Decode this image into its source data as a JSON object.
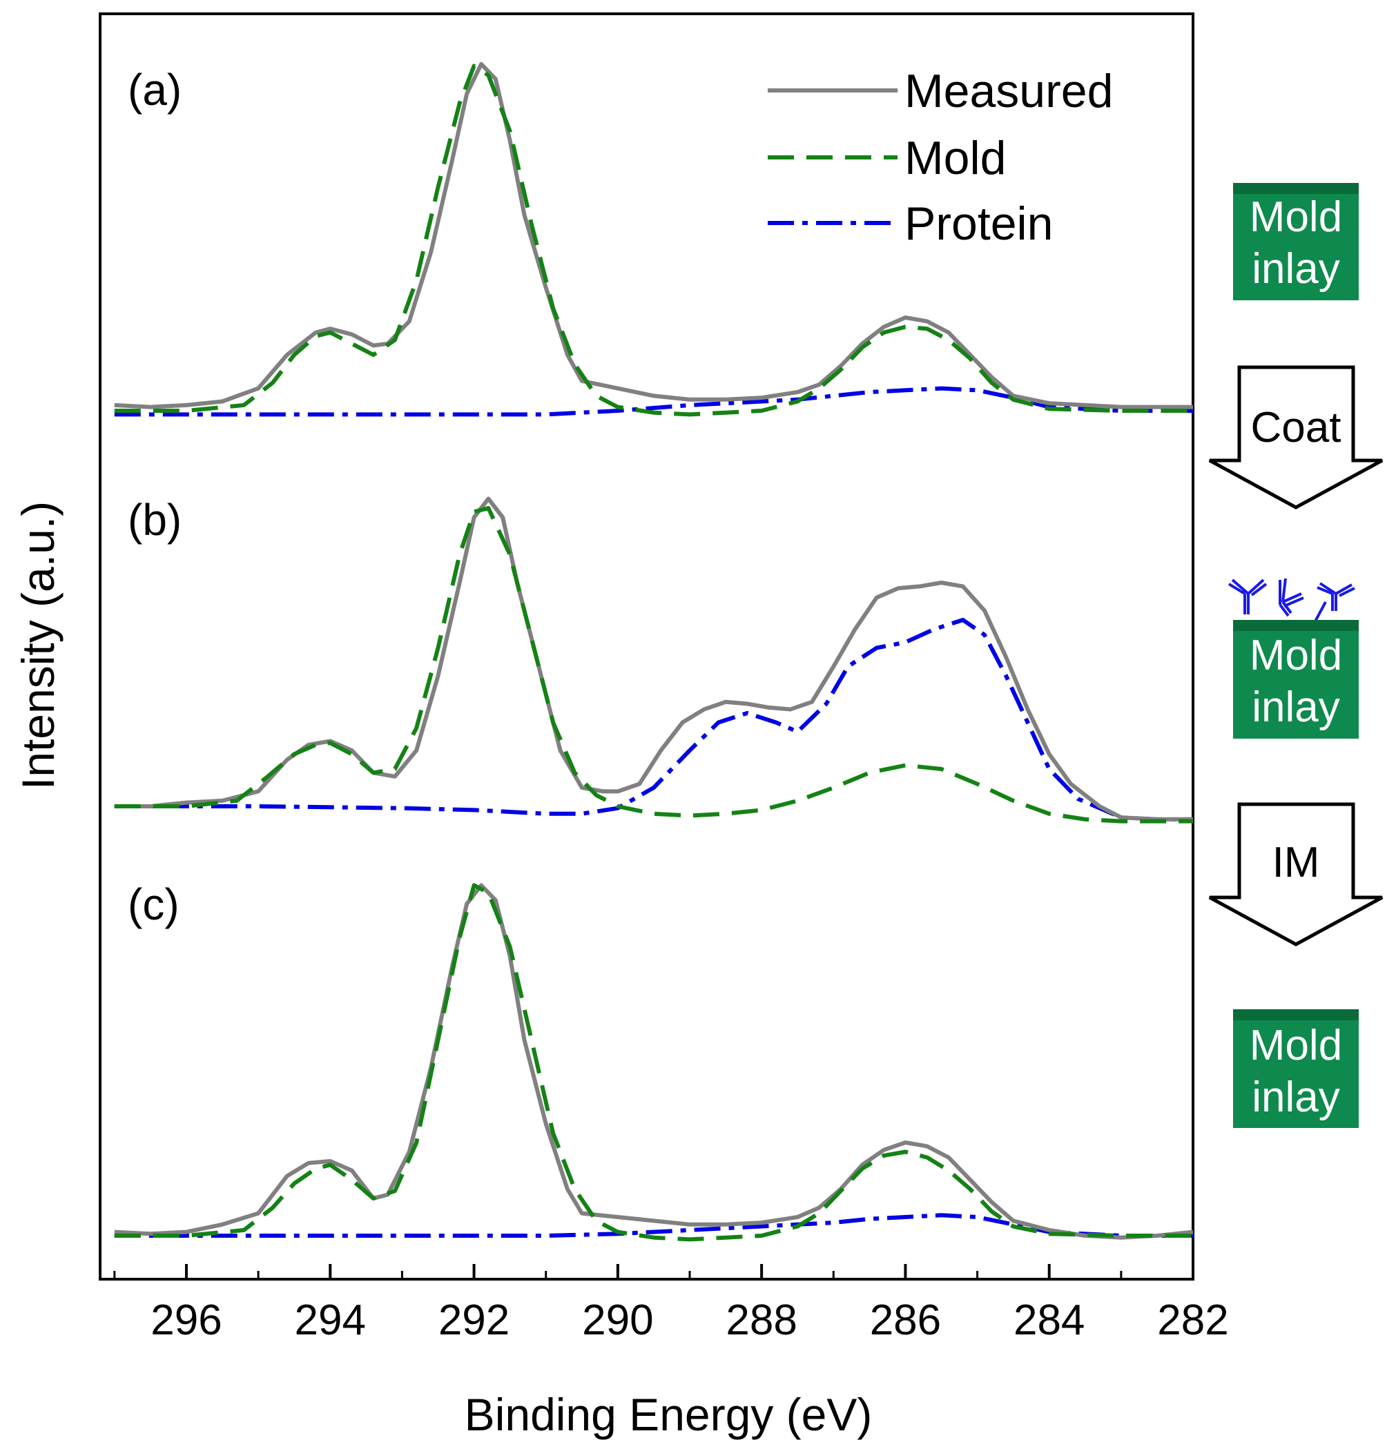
{
  "chart_data": {
    "type": "line",
    "title": "",
    "xlabel": "Binding Energy (eV)",
    "ylabel": "Intensity (a.u.)",
    "xlim": [
      297.2,
      282
    ],
    "x_reversed": true,
    "x_ticks": [
      296,
      294,
      292,
      290,
      288,
      286,
      284,
      282
    ],
    "y_ticks_shown": false,
    "grid": false,
    "legend": {
      "position": "top-right",
      "entries": [
        {
          "name": "Measured",
          "style": "solid",
          "color": "#808080"
        },
        {
          "name": "Mold",
          "style": "dashed",
          "color": "#148214"
        },
        {
          "name": "Protein",
          "style": "dash-dot",
          "color": "#0000e6"
        }
      ]
    },
    "panels": [
      {
        "label": "(a)",
        "description": "Mold inlay",
        "series": [
          {
            "name": "Measured",
            "x": [
              297,
              296.5,
              296,
              295.5,
              295,
              294.6,
              294.2,
              294,
              293.7,
              293.4,
              293.2,
              292.9,
              292.6,
              292.3,
              292.1,
              291.9,
              291.7,
              291.5,
              291.3,
              291,
              290.7,
              290.5,
              290,
              289.5,
              289,
              288.5,
              288,
              287.5,
              287.2,
              286.9,
              286.6,
              286.3,
              286,
              285.7,
              285.4,
              285.1,
              284.8,
              284.5,
              284,
              283.5,
              283,
              282.5,
              282
            ],
            "y": [
              0.03,
              0.02,
              0.03,
              0.05,
              0.12,
              0.3,
              0.42,
              0.44,
              0.41,
              0.35,
              0.36,
              0.48,
              0.85,
              1.35,
              1.7,
              1.86,
              1.78,
              1.45,
              1.05,
              0.66,
              0.3,
              0.16,
              0.12,
              0.08,
              0.06,
              0.06,
              0.07,
              0.1,
              0.14,
              0.24,
              0.36,
              0.45,
              0.5,
              0.48,
              0.42,
              0.3,
              0.18,
              0.08,
              0.04,
              0.03,
              0.02,
              0.02,
              0.02
            ]
          },
          {
            "name": "Mold",
            "x": [
              297,
              296,
              295.2,
              294.8,
              294.5,
              294.2,
              294,
              293.7,
              293.4,
              293.1,
              292.8,
              292.5,
              292.2,
              292,
              291.8,
              291.5,
              291.2,
              290.9,
              290.6,
              290.3,
              290,
              289.5,
              289,
              288.5,
              288,
              287.5,
              287.2,
              286.9,
              286.6,
              286.3,
              286,
              285.7,
              285.4,
              285.1,
              284.8,
              284.5,
              284,
              283,
              282
            ],
            "y": [
              0,
              0,
              0.03,
              0.15,
              0.3,
              0.4,
              0.42,
              0.36,
              0.3,
              0.38,
              0.7,
              1.2,
              1.65,
              1.85,
              1.8,
              1.5,
              1.0,
              0.55,
              0.25,
              0.08,
              0.02,
              -0.01,
              -0.02,
              -0.01,
              0.0,
              0.05,
              0.12,
              0.22,
              0.34,
              0.42,
              0.45,
              0.44,
              0.38,
              0.28,
              0.15,
              0.06,
              0.01,
              0,
              0
            ]
          },
          {
            "name": "Protein",
            "x": [
              297,
              295,
              293,
              291,
              290,
              289,
              288,
              287.5,
              287,
              286.5,
              286,
              285.5,
              285,
              284.5,
              284,
              283,
              282
            ],
            "y": [
              -0.02,
              -0.02,
              -0.02,
              -0.02,
              0.0,
              0.03,
              0.05,
              0.06,
              0.08,
              0.1,
              0.11,
              0.12,
              0.11,
              0.07,
              0.02,
              0.0,
              0.0
            ]
          }
        ]
      },
      {
        "label": "(b)",
        "description": "Coated mold inlay with antibodies",
        "series": [
          {
            "name": "Measured",
            "x": [
              297,
              296.5,
              296,
              295.5,
              295,
              294.6,
              294.3,
              294,
              293.7,
              293.4,
              293.1,
              292.8,
              292.5,
              292.2,
              292,
              291.8,
              291.6,
              291.4,
              291.2,
              291,
              290.8,
              290.5,
              290.2,
              290,
              289.7,
              289.4,
              289.1,
              288.8,
              288.5,
              288.2,
              287.9,
              287.6,
              287.3,
              287,
              286.7,
              286.4,
              286.1,
              285.8,
              285.5,
              285.2,
              284.9,
              284.6,
              284.3,
              284,
              283.7,
              283.3,
              283,
              282.5,
              282
            ],
            "y": [
              0.0,
              0.0,
              0.02,
              0.03,
              0.08,
              0.25,
              0.33,
              0.35,
              0.3,
              0.18,
              0.16,
              0.3,
              0.7,
              1.2,
              1.55,
              1.65,
              1.55,
              1.2,
              0.9,
              0.6,
              0.3,
              0.1,
              0.08,
              0.08,
              0.12,
              0.3,
              0.45,
              0.52,
              0.56,
              0.55,
              0.53,
              0.52,
              0.56,
              0.75,
              0.95,
              1.12,
              1.17,
              1.18,
              1.2,
              1.18,
              1.05,
              0.8,
              0.52,
              0.28,
              0.12,
              0.0,
              -0.06,
              -0.07,
              -0.07
            ]
          },
          {
            "name": "Mold",
            "x": [
              297,
              296,
              295.3,
              294.9,
              294.5,
              294.2,
              294,
              293.7,
              293.4,
              293.1,
              292.8,
              292.5,
              292.2,
              292,
              291.8,
              291.5,
              291.2,
              290.9,
              290.6,
              290.3,
              290,
              289.5,
              289,
              288.5,
              288,
              287.5,
              287,
              286.5,
              286,
              285.5,
              285,
              284.5,
              284,
              283.5,
              283,
              282.5,
              282
            ],
            "y": [
              0.0,
              0.0,
              0.03,
              0.15,
              0.28,
              0.33,
              0.34,
              0.28,
              0.18,
              0.2,
              0.42,
              0.85,
              1.35,
              1.58,
              1.6,
              1.35,
              0.9,
              0.45,
              0.18,
              0.06,
              0.0,
              -0.04,
              -0.05,
              -0.04,
              -0.02,
              0.03,
              0.1,
              0.18,
              0.22,
              0.2,
              0.12,
              0.03,
              -0.04,
              -0.07,
              -0.08,
              -0.08,
              -0.08
            ]
          },
          {
            "name": "Protein",
            "x": [
              297,
              295,
              293,
              292,
              291,
              290.5,
              290,
              289.5,
              289,
              288.6,
              288.2,
              287.8,
              287.5,
              287.1,
              286.8,
              286.4,
              286,
              285.6,
              285.2,
              284.9,
              284.6,
              284.3,
              284,
              283.6,
              283,
              282.5,
              282
            ],
            "y": [
              0.0,
              0.0,
              -0.01,
              -0.02,
              -0.04,
              -0.04,
              -0.01,
              0.1,
              0.3,
              0.45,
              0.5,
              0.45,
              0.4,
              0.55,
              0.75,
              0.85,
              0.88,
              0.95,
              1.0,
              0.92,
              0.7,
              0.45,
              0.2,
              0.04,
              -0.06,
              -0.07,
              -0.07
            ]
          }
        ]
      },
      {
        "label": "(c)",
        "description": "Mold inlay after IM",
        "series": [
          {
            "name": "Measured",
            "x": [
              297,
              296.5,
              296,
              295.5,
              295,
              294.6,
              294.3,
              294,
              293.7,
              293.4,
              293.2,
              292.9,
              292.6,
              292.3,
              292.1,
              291.9,
              291.7,
              291.5,
              291.3,
              291,
              290.7,
              290.5,
              290,
              289.5,
              289,
              288.5,
              288,
              287.5,
              287.2,
              286.9,
              286.6,
              286.3,
              286,
              285.7,
              285.4,
              285.1,
              284.8,
              284.5,
              284,
              283.5,
              283,
              282.5,
              282
            ],
            "y": [
              0.02,
              0.01,
              0.02,
              0.06,
              0.12,
              0.32,
              0.39,
              0.4,
              0.35,
              0.2,
              0.22,
              0.45,
              0.9,
              1.45,
              1.78,
              1.88,
              1.8,
              1.5,
              1.05,
              0.6,
              0.25,
              0.12,
              0.1,
              0.08,
              0.06,
              0.06,
              0.07,
              0.1,
              0.15,
              0.25,
              0.38,
              0.46,
              0.5,
              0.48,
              0.42,
              0.3,
              0.18,
              0.08,
              0.03,
              0.0,
              -0.01,
              0.0,
              0.02
            ]
          },
          {
            "name": "Mold",
            "x": [
              297,
              296,
              295.2,
              294.8,
              294.5,
              294.2,
              294,
              293.7,
              293.4,
              293.1,
              292.8,
              292.5,
              292.2,
              292,
              291.8,
              291.5,
              291.2,
              290.9,
              290.6,
              290.3,
              290,
              289.5,
              289,
              288.5,
              288,
              287.5,
              287.2,
              286.9,
              286.6,
              286.3,
              286,
              285.7,
              285.4,
              285.1,
              284.8,
              284.5,
              284,
              283,
              282
            ],
            "y": [
              0,
              0,
              0.03,
              0.15,
              0.28,
              0.36,
              0.38,
              0.3,
              0.2,
              0.24,
              0.5,
              1.05,
              1.6,
              1.88,
              1.84,
              1.55,
              1.05,
              0.55,
              0.25,
              0.08,
              0.02,
              -0.01,
              -0.02,
              -0.01,
              0.0,
              0.05,
              0.12,
              0.24,
              0.36,
              0.43,
              0.45,
              0.42,
              0.35,
              0.25,
              0.13,
              0.05,
              0.01,
              0,
              0
            ]
          },
          {
            "name": "Protein",
            "x": [
              297,
              295,
              293,
              291,
              290,
              289,
              288,
              287.5,
              287,
              286.5,
              286,
              285.5,
              285,
              284.5,
              284,
              283,
              282
            ],
            "y": [
              0.0,
              0.0,
              0.0,
              0.0,
              0.01,
              0.03,
              0.05,
              0.06,
              0.07,
              0.09,
              0.1,
              0.11,
              0.1,
              0.06,
              0.02,
              0.0,
              0.0
            ]
          }
        ]
      }
    ]
  },
  "side_annotations": {
    "boxes": [
      {
        "line1": "Mold",
        "line2": "inlay",
        "has_antibodies": false
      },
      {
        "line1": "Mold",
        "line2": "inlay",
        "has_antibodies": true
      },
      {
        "line1": "Mold",
        "line2": "inlay",
        "has_antibodies": false
      }
    ],
    "arrows": [
      "Coat",
      "IM"
    ],
    "box_color": "#0e8a4e",
    "box_top_color": "#0a6b3a",
    "antibody_color": "#1a1ae6"
  }
}
